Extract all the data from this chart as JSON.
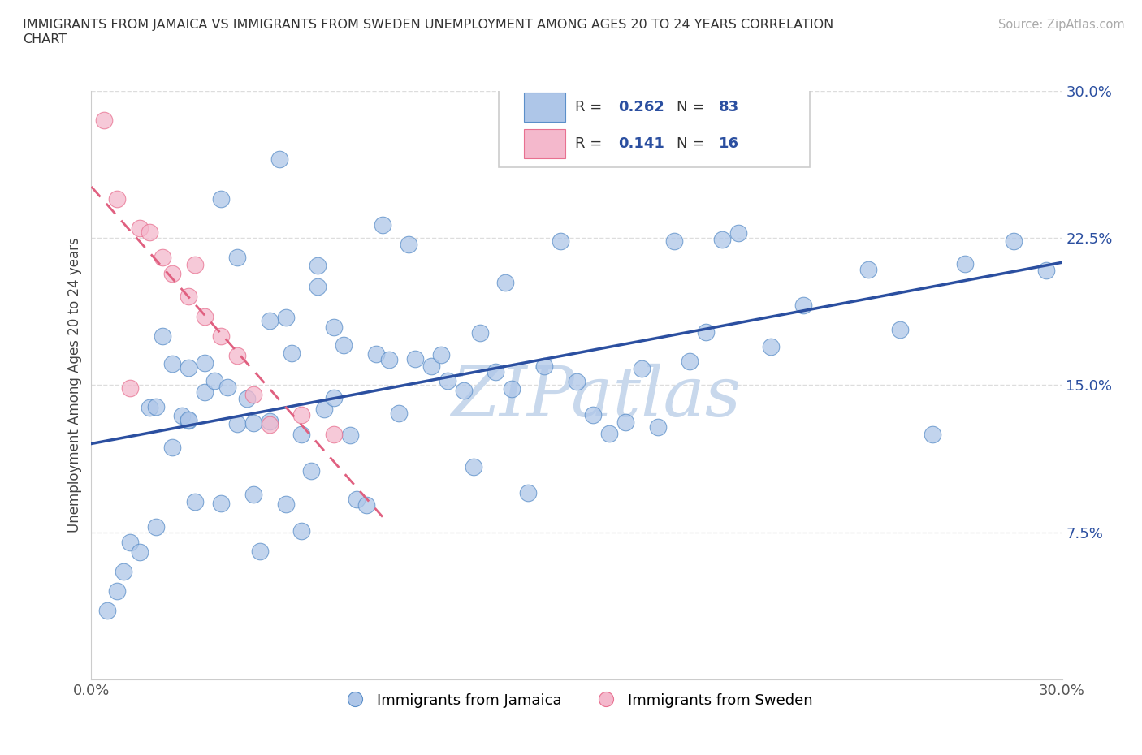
{
  "title": "IMMIGRANTS FROM JAMAICA VS IMMIGRANTS FROM SWEDEN UNEMPLOYMENT AMONG AGES 20 TO 24 YEARS CORRELATION\nCHART",
  "source_text": "Source: ZipAtlas.com",
  "ylabel": "Unemployment Among Ages 20 to 24 years",
  "xlim": [
    0,
    0.3
  ],
  "ylim": [
    0,
    0.3
  ],
  "jamaica_color": "#aec6e8",
  "sweden_color": "#f4b8cc",
  "jamaica_edge_color": "#5b8fc9",
  "sweden_edge_color": "#e87090",
  "jamaica_line_color": "#2b4fa0",
  "sweden_line_color": "#e06080",
  "watermark": "ZIPatlas",
  "watermark_color": "#c8d8ec",
  "background_color": "#ffffff",
  "grid_color": "#dddddd",
  "legend_R_N_color": "#2b4fa0",
  "legend_text_color": "#333333",
  "ytick_label_color": "#2b4fa0",
  "jamaica_N": 83,
  "sweden_N": 16,
  "jamaica_R": "0.262",
  "sweden_R": "0.141"
}
